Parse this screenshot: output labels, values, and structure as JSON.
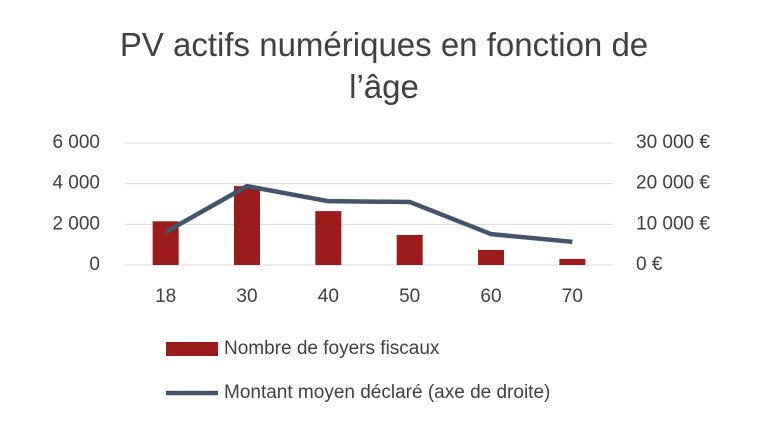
{
  "chart_data": {
    "type": "bar-line",
    "title": "PV actifs numériques en fonction de l’âge",
    "categories": [
      "18",
      "30",
      "40",
      "50",
      "60",
      "70"
    ],
    "series": [
      {
        "name": "Nombre de foyers fiscaux",
        "color": "#9c1b1b",
        "type": "bar",
        "values": [
          2150,
          3880,
          2650,
          1480,
          740,
          300
        ]
      },
      {
        "name": "Montant moyen déclaré (axe de droite)",
        "color": "#44546a",
        "type": "line",
        "axis": "y2",
        "values": [
          8100,
          19400,
          15700,
          15500,
          7600,
          5700
        ]
      }
    ],
    "ylim": [
      0,
      6000
    ],
    "yticks": [
      0,
      {
        "value": 2000,
        "label": "2 000"
      },
      {
        "value": 4000,
        "label": "4 000"
      },
      {
        "value": 6000,
        "label": "6 000"
      }
    ],
    "y2lim": [
      0,
      30000
    ],
    "y2ticks": [
      {
        "value": 0,
        "label": "0 €"
      },
      {
        "value": 10000,
        "label": "10 000 €"
      },
      {
        "value": 20000,
        "label": "20 000 €"
      },
      {
        "value": 30000,
        "label": "30 000 €"
      }
    ],
    "grid": true,
    "legend": "bottom"
  }
}
